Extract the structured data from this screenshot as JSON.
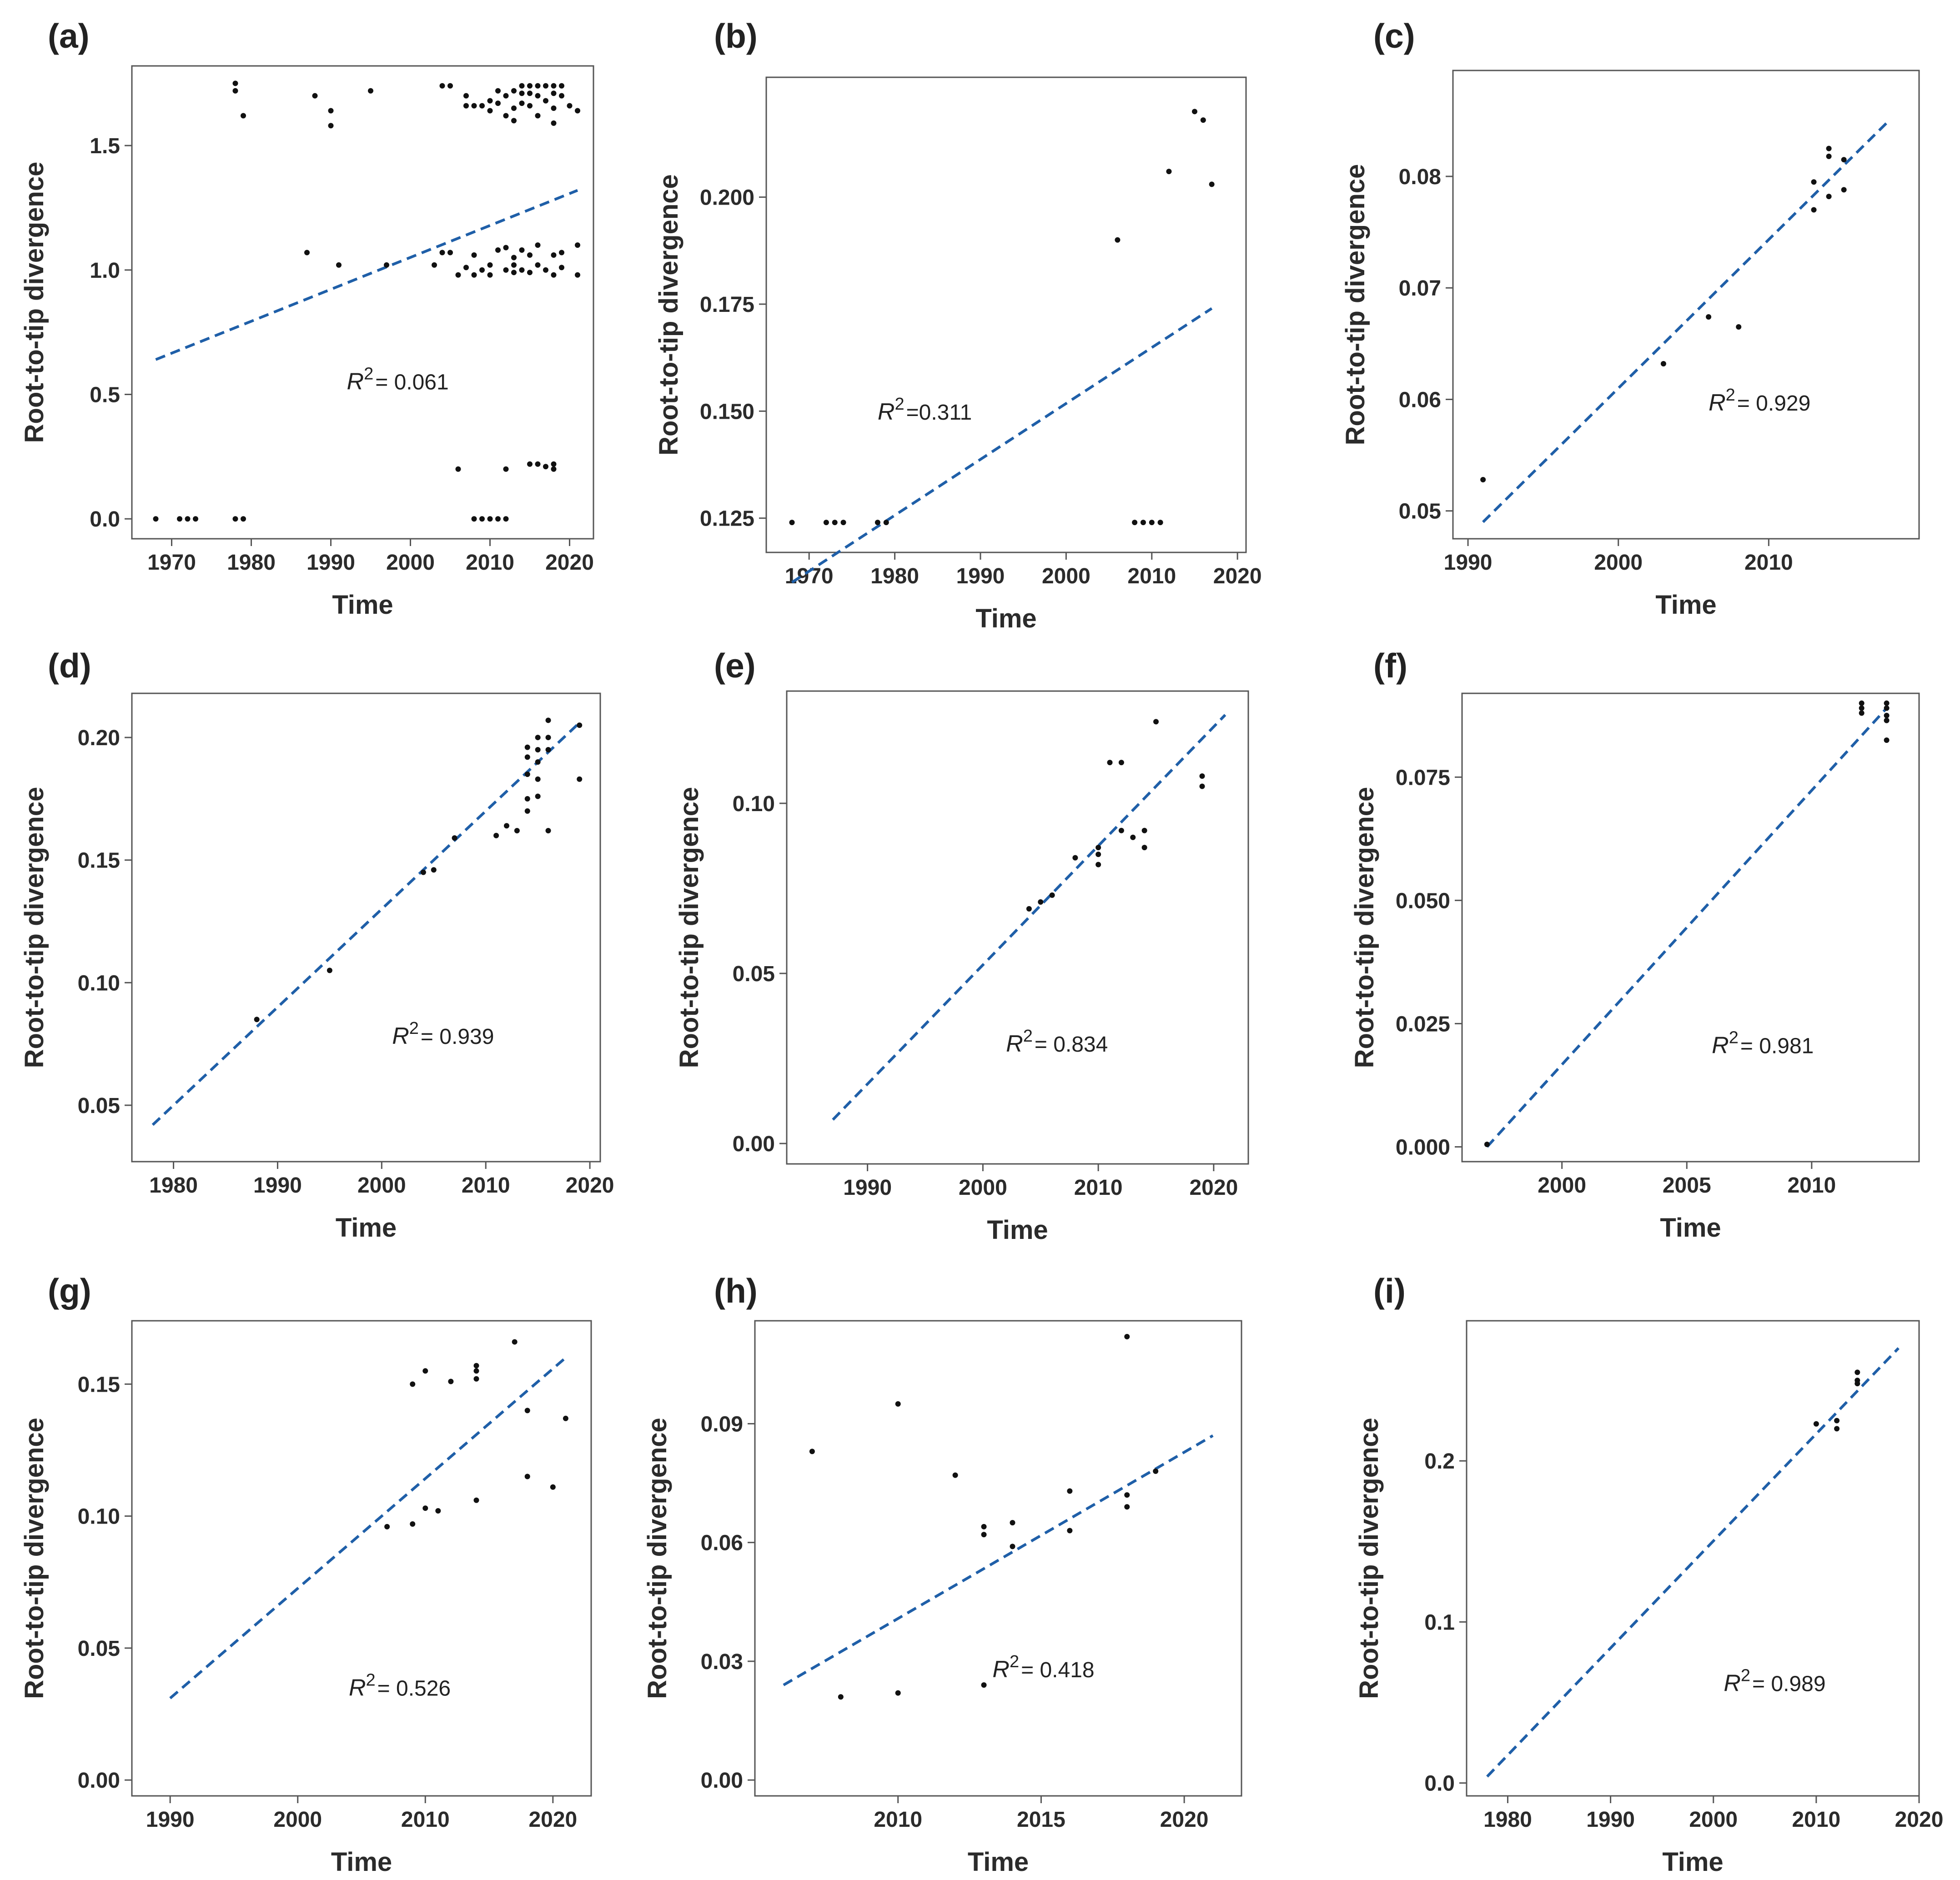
{
  "figure": {
    "panel_label_prefix": "(",
    "panel_label_suffix": ")",
    "fit_color": "#1f5fa8",
    "point_color": "#111111"
  },
  "chart_data": [
    {
      "panel": "a",
      "type": "scatter",
      "xlabel": "Time",
      "ylabel": "Root-to-tip divergence",
      "r2_symbol": "R",
      "r2_sup": "2",
      "r2_value": "= 0.061",
      "r2_at": [
        1992,
        0.52
      ],
      "xlim": [
        1965,
        2023
      ],
      "ylim": [
        -0.08,
        1.82
      ],
      "xticks": [
        1970,
        1980,
        1990,
        2000,
        2010,
        2020
      ],
      "yticks": [
        "0.0",
        "0.5",
        "1.0",
        "1.5"
      ],
      "fit": {
        "x": [
          1968,
          2021
        ],
        "y": [
          0.64,
          1.32
        ]
      },
      "points": [
        [
          1968,
          0
        ],
        [
          1971,
          0
        ],
        [
          1972,
          0
        ],
        [
          1973,
          0
        ],
        [
          1978,
          0
        ],
        [
          1979,
          0
        ],
        [
          2008,
          0
        ],
        [
          2009,
          0
        ],
        [
          2010,
          0
        ],
        [
          2011,
          0
        ],
        [
          2012,
          0
        ],
        [
          2006,
          0.2
        ],
        [
          2012,
          0.2
        ],
        [
          2015,
          0.22
        ],
        [
          2016,
          0.22
        ],
        [
          2017,
          0.21
        ],
        [
          2018,
          0.2
        ],
        [
          2018,
          0.22
        ],
        [
          1987,
          1.07
        ],
        [
          1991,
          1.02
        ],
        [
          1997,
          1.02
        ],
        [
          2003,
          1.02
        ],
        [
          2004,
          1.07
        ],
        [
          2005,
          1.07
        ],
        [
          2006,
          0.98
        ],
        [
          2007,
          1.01
        ],
        [
          2008,
          1.06
        ],
        [
          2008,
          0.98
        ],
        [
          2009,
          1.0
        ],
        [
          2010,
          1.02
        ],
        [
          2010,
          0.98
        ],
        [
          2011,
          1.08
        ],
        [
          2012,
          1.09
        ],
        [
          2012,
          1.0
        ],
        [
          2013,
          1.05
        ],
        [
          2013,
          0.99
        ],
        [
          2013,
          1.02
        ],
        [
          2014,
          1.08
        ],
        [
          2014,
          1.0
        ],
        [
          2015,
          1.06
        ],
        [
          2015,
          0.99
        ],
        [
          2016,
          1.1
        ],
        [
          2016,
          1.02
        ],
        [
          2017,
          1.0
        ],
        [
          2018,
          1.06
        ],
        [
          2018,
          0.98
        ],
        [
          2019,
          1.07
        ],
        [
          2019,
          1.01
        ],
        [
          2021,
          1.1
        ],
        [
          2021,
          0.98
        ],
        [
          1978,
          1.75
        ],
        [
          1978,
          1.72
        ],
        [
          1979,
          1.62
        ],
        [
          1988,
          1.7
        ],
        [
          1990,
          1.64
        ],
        [
          1990,
          1.58
        ],
        [
          1995,
          1.72
        ],
        [
          2004,
          1.74
        ],
        [
          2005,
          1.74
        ],
        [
          2007,
          1.7
        ],
        [
          2007,
          1.66
        ],
        [
          2008,
          1.66
        ],
        [
          2009,
          1.66
        ],
        [
          2010,
          1.68
        ],
        [
          2010,
          1.64
        ],
        [
          2011,
          1.72
        ],
        [
          2011,
          1.67
        ],
        [
          2012,
          1.7
        ],
        [
          2012,
          1.62
        ],
        [
          2013,
          1.72
        ],
        [
          2013,
          1.65
        ],
        [
          2013,
          1.6
        ],
        [
          2014,
          1.74
        ],
        [
          2014,
          1.71
        ],
        [
          2014,
          1.67
        ],
        [
          2015,
          1.74
        ],
        [
          2015,
          1.71
        ],
        [
          2015,
          1.66
        ],
        [
          2016,
          1.74
        ],
        [
          2016,
          1.7
        ],
        [
          2016,
          1.62
        ],
        [
          2017,
          1.74
        ],
        [
          2017,
          1.68
        ],
        [
          2018,
          1.74
        ],
        [
          2018,
          1.71
        ],
        [
          2018,
          1.65
        ],
        [
          2018,
          1.59
        ],
        [
          2019,
          1.74
        ],
        [
          2019,
          1.7
        ],
        [
          2020,
          1.66
        ],
        [
          2021,
          1.64
        ]
      ]
    },
    {
      "panel": "b",
      "type": "scatter",
      "xlabel": "Time",
      "ylabel": "Root-to-tip divergence",
      "r2_symbol": "R",
      "r2_sup": "2",
      "r2_value": "=0.311",
      "r2_at": [
        1978,
        0.148
      ],
      "xlim": [
        1965,
        2021
      ],
      "ylim": [
        0.117,
        0.228
      ],
      "xticks": [
        1970,
        1980,
        1990,
        2000,
        2010,
        2020
      ],
      "yticks": [
        "0.125",
        "0.150",
        "0.175",
        "0.200"
      ],
      "fit": {
        "x": [
          1968,
          2017
        ],
        "y": [
          0.11,
          0.174
        ]
      },
      "points": [
        [
          1968,
          0.124
        ],
        [
          1972,
          0.124
        ],
        [
          1973,
          0.124
        ],
        [
          1974,
          0.124
        ],
        [
          1978,
          0.124
        ],
        [
          1979,
          0.124
        ],
        [
          2008,
          0.124
        ],
        [
          2009,
          0.124
        ],
        [
          2010,
          0.124
        ],
        [
          2011,
          0.124
        ],
        [
          2006,
          0.19
        ],
        [
          2012,
          0.206
        ],
        [
          2015,
          0.22
        ],
        [
          2016,
          0.218
        ],
        [
          2017,
          0.203
        ]
      ]
    },
    {
      "panel": "c",
      "type": "scatter",
      "xlabel": "Time",
      "ylabel": "Root-to-tip divergence",
      "r2_symbol": "R",
      "r2_sup": "2",
      "r2_value": "= 0.929",
      "r2_at": [
        2006,
        0.059
      ],
      "xlim": [
        1989,
        2020
      ],
      "ylim": [
        0.0475,
        0.0895
      ],
      "xticks": [
        1990,
        2000,
        2010
      ],
      "yticks": [
        "0.05",
        "0.06",
        "0.07",
        "0.08"
      ],
      "fit": {
        "x": [
          1991,
          2018
        ],
        "y": [
          0.049,
          0.085
        ]
      },
      "points": [
        [
          1991,
          0.0528
        ],
        [
          2003,
          0.0632
        ],
        [
          2006,
          0.0674
        ],
        [
          2008,
          0.0665
        ],
        [
          2013,
          0.077
        ],
        [
          2013,
          0.0795
        ],
        [
          2014,
          0.0782
        ],
        [
          2014,
          0.0818
        ],
        [
          2014,
          0.0825
        ],
        [
          2015,
          0.0788
        ],
        [
          2015,
          0.0815
        ]
      ]
    },
    {
      "panel": "d",
      "type": "scatter",
      "xlabel": "Time",
      "ylabel": "Root-to-tip divergence",
      "r2_symbol": "R",
      "r2_sup": "2",
      "r2_value": "= 0.939",
      "r2_at": [
        2001,
        0.075
      ],
      "xlim": [
        1976,
        2021
      ],
      "ylim": [
        0.027,
        0.218
      ],
      "xticks": [
        1980,
        1990,
        2000,
        2010,
        2020
      ],
      "yticks": [
        "0.05",
        "0.10",
        "0.15",
        "0.20"
      ],
      "fit": {
        "x": [
          1978,
          2019
        ],
        "y": [
          0.042,
          0.206
        ]
      },
      "points": [
        [
          1988,
          0.085
        ],
        [
          1995,
          0.105
        ],
        [
          2004,
          0.145
        ],
        [
          2005,
          0.146
        ],
        [
          2007,
          0.159
        ],
        [
          2011,
          0.16
        ],
        [
          2012,
          0.164
        ],
        [
          2013,
          0.162
        ],
        [
          2014,
          0.192
        ],
        [
          2014,
          0.196
        ],
        [
          2014,
          0.185
        ],
        [
          2014,
          0.175
        ],
        [
          2014,
          0.17
        ],
        [
          2015,
          0.2
        ],
        [
          2015,
          0.195
        ],
        [
          2015,
          0.19
        ],
        [
          2015,
          0.183
        ],
        [
          2015,
          0.176
        ],
        [
          2016,
          0.207
        ],
        [
          2016,
          0.2
        ],
        [
          2016,
          0.195
        ],
        [
          2016,
          0.162
        ],
        [
          2019,
          0.205
        ],
        [
          2019,
          0.183
        ]
      ]
    },
    {
      "panel": "e",
      "type": "scatter",
      "xlabel": "Time",
      "ylabel": "Root-to-tip divergence",
      "r2_symbol": "R",
      "r2_sup": "2",
      "r2_value": "= 0.834",
      "r2_at": [
        2002,
        0.027
      ],
      "xlim": [
        1983,
        2023
      ],
      "ylim": [
        -0.006,
        0.133
      ],
      "xticks": [
        1990,
        2000,
        2010,
        2020
      ],
      "yticks": [
        "0.00",
        "0.05",
        "0.10"
      ],
      "fit": {
        "x": [
          1987,
          2021
        ],
        "y": [
          0.007,
          0.126
        ]
      },
      "points": [
        [
          2004,
          0.069
        ],
        [
          2005,
          0.071
        ],
        [
          2006,
          0.073
        ],
        [
          2008,
          0.084
        ],
        [
          2010,
          0.087
        ],
        [
          2010,
          0.085
        ],
        [
          2010,
          0.082
        ],
        [
          2011,
          0.112
        ],
        [
          2012,
          0.112
        ],
        [
          2012,
          0.092
        ],
        [
          2013,
          0.09
        ],
        [
          2014,
          0.092
        ],
        [
          2014,
          0.087
        ],
        [
          2015,
          0.124
        ],
        [
          2019,
          0.108
        ],
        [
          2019,
          0.105
        ]
      ]
    },
    {
      "panel": "f",
      "type": "scatter",
      "xlabel": "Time",
      "ylabel": "Root-to-tip divergence",
      "r2_symbol": "R",
      "r2_sup": "2",
      "r2_value": "= 0.981",
      "r2_at": [
        2006,
        0.019
      ],
      "xlim": [
        1996,
        2014.3
      ],
      "ylim": [
        -0.003,
        0.092
      ],
      "xticks": [
        2000,
        2005,
        2010
      ],
      "yticks": [
        "0.000",
        "0.025",
        "0.050",
        "0.075"
      ],
      "fit": {
        "x": [
          1997,
          2013
        ],
        "y": [
          0,
          0.089
        ]
      },
      "points": [
        [
          1997,
          0.0005
        ],
        [
          2012,
          0.09
        ],
        [
          2012,
          0.089
        ],
        [
          2012,
          0.088
        ],
        [
          2013,
          0.09
        ],
        [
          2013,
          0.089
        ],
        [
          2013,
          0.0875
        ],
        [
          2013,
          0.0865
        ],
        [
          2013,
          0.0825
        ]
      ]
    },
    {
      "panel": "g",
      "type": "scatter",
      "xlabel": "Time",
      "ylabel": "Root-to-tip divergence",
      "r2_symbol": "R",
      "r2_sup": "2",
      "r2_value": "= 0.526",
      "r2_at": [
        2004,
        0.032
      ],
      "xlim": [
        1987,
        2023
      ],
      "ylim": [
        -0.006,
        0.174
      ],
      "xticks": [
        1990,
        2000,
        2010,
        2020
      ],
      "yticks": [
        "0.00",
        "0.05",
        "0.10",
        "0.15"
      ],
      "fit": {
        "x": [
          1990,
          2021
        ],
        "y": [
          0.031,
          0.16
        ]
      },
      "points": [
        [
          2007,
          0.096
        ],
        [
          2009,
          0.15
        ],
        [
          2009,
          0.097
        ],
        [
          2010,
          0.155
        ],
        [
          2010,
          0.103
        ],
        [
          2011,
          0.102
        ],
        [
          2012,
          0.151
        ],
        [
          2014,
          0.157
        ],
        [
          2014,
          0.155
        ],
        [
          2014,
          0.152
        ],
        [
          2014,
          0.106
        ],
        [
          2017,
          0.166
        ],
        [
          2018,
          0.14
        ],
        [
          2018,
          0.115
        ],
        [
          2020,
          0.111
        ],
        [
          2021,
          0.137
        ]
      ]
    },
    {
      "panel": "h",
      "type": "scatter",
      "xlabel": "Time",
      "ylabel": "Root-to-tip divergence",
      "r2_symbol": "R",
      "r2_sup": "2",
      "r2_value": "= 0.418",
      "r2_at": [
        2013.3,
        0.026
      ],
      "xlim": [
        2005,
        2022
      ],
      "ylim": [
        -0.004,
        0.116
      ],
      "xticks": [
        2010,
        2015,
        2020
      ],
      "yticks": [
        "0.00",
        "0.03",
        "0.06",
        "0.09"
      ],
      "fit": {
        "x": [
          2006,
          2021
        ],
        "y": [
          0.024,
          0.087
        ]
      },
      "points": [
        [
          2007,
          0.083
        ],
        [
          2008,
          0.021
        ],
        [
          2010,
          0.095
        ],
        [
          2010,
          0.022
        ],
        [
          2012,
          0.077
        ],
        [
          2013,
          0.064
        ],
        [
          2013,
          0.062
        ],
        [
          2013,
          0.024
        ],
        [
          2014,
          0.065
        ],
        [
          2014,
          0.059
        ],
        [
          2016,
          0.073
        ],
        [
          2016,
          0.063
        ],
        [
          2018,
          0.112
        ],
        [
          2018,
          0.072
        ],
        [
          2018,
          0.069
        ],
        [
          2019,
          0.078
        ]
      ]
    },
    {
      "panel": "i",
      "type": "scatter",
      "xlabel": "Time",
      "ylabel": "Root-to-tip divergence",
      "r2_symbol": "R",
      "r2_sup": "2",
      "r2_value": "= 0.989",
      "r2_at": [
        2001,
        0.057
      ],
      "xlim": [
        1976,
        2020
      ],
      "ylim": [
        -0.008,
        0.287
      ],
      "xticks": [
        1980,
        1990,
        2000,
        2010,
        2020
      ],
      "yticks": [
        "0.0",
        "0.1",
        "0.2"
      ],
      "fit": {
        "x": [
          1978,
          2018
        ],
        "y": [
          0.004,
          0.27
        ]
      },
      "points": [
        [
          2010,
          0.223
        ],
        [
          2012,
          0.225
        ],
        [
          2012,
          0.22
        ],
        [
          2014,
          0.255
        ],
        [
          2014,
          0.25
        ],
        [
          2014,
          0.248
        ]
      ]
    }
  ]
}
